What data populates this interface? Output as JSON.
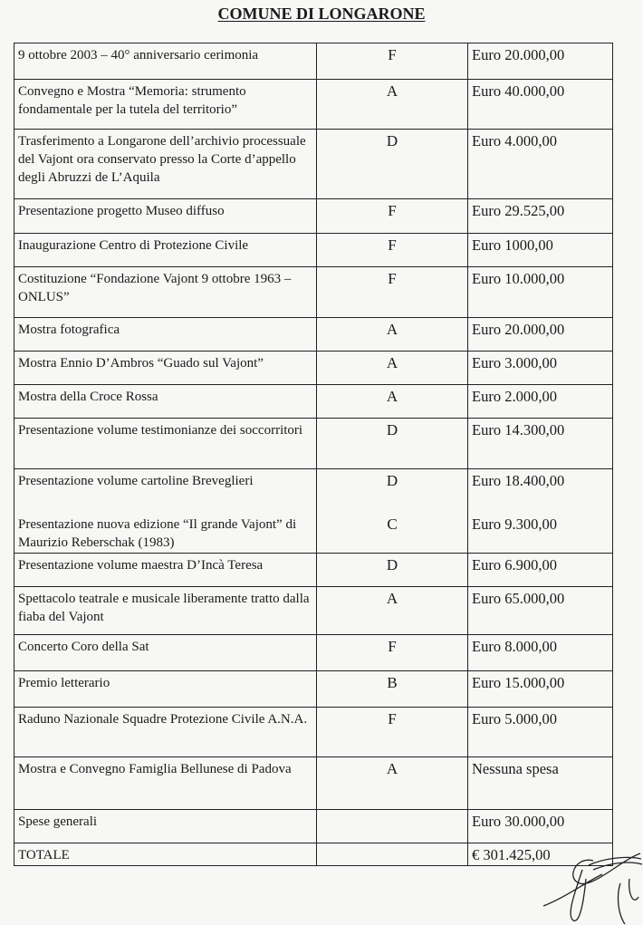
{
  "document": {
    "title": "COMUNE DI LONGARONE",
    "rows": [
      {
        "event": "9 ottobre 2003 – 40° anniversario cerimonia",
        "category": "F",
        "cost": "Euro 20.000,00"
      },
      {
        "event": "Convegno e Mostra “Memoria: strumento fondamentale per la tutela del territorio”",
        "category": "A",
        "cost": "Euro 40.000,00"
      },
      {
        "event": "Trasferimento a Longarone dell’archivio processuale del Vajont ora conservato presso la Corte d’appello degli Abruzzi de L’Aquila",
        "category": "D",
        "cost": "Euro 4.000,00"
      },
      {
        "event": "Presentazione progetto Museo diffuso",
        "category": "F",
        "cost": "Euro 29.525,00"
      },
      {
        "event": "Inaugurazione Centro di Protezione Civile",
        "category": "F",
        "cost": "Euro 1000,00"
      },
      {
        "event": "Costituzione “Fondazione Vajont 9 ottobre 1963 – ONLUS”",
        "category": "F",
        "cost": "Euro 10.000,00"
      },
      {
        "event": "Mostra fotografica",
        "category": "A",
        "cost": "Euro 20.000,00"
      },
      {
        "event": "Mostra Ennio D’Ambros “Guado sul Vajont”",
        "category": "A",
        "cost": "Euro 3.000,00"
      },
      {
        "event": "Mostra della Croce Rossa",
        "category": "A",
        "cost": "Euro 2.000,00"
      },
      {
        "event": "Presentazione volume testimonianze dei soccorritori",
        "category": "D",
        "cost": "Euro 14.300,00"
      },
      {
        "event": "Presentazione volume cartoline Breveglieri",
        "category": "D",
        "cost": "Euro 18.400,00"
      },
      {
        "event": "Presentazione nuova edizione “Il grande Vajont” di Maurizio Reberschak (1983)",
        "category": "C",
        "cost": "Euro 9.300,00"
      },
      {
        "event": "Presentazione volume maestra D’Incà Teresa",
        "category": "D",
        "cost": "Euro 6.900,00"
      },
      {
        "event": "Spettacolo teatrale e musicale liberamente tratto dalla fiaba del Vajont",
        "category": "A",
        "cost": "Euro 65.000,00"
      },
      {
        "event": "Concerto Coro della Sat",
        "category": "F",
        "cost": "Euro 8.000,00"
      },
      {
        "event": "Premio letterario",
        "category": "B",
        "cost": "Euro 15.000,00"
      },
      {
        "event": "Raduno Nazionale Squadre Protezione Civile A.N.A.",
        "category": "F",
        "cost": "Euro 5.000,00"
      },
      {
        "event": "Mostra e Convegno Famiglia Bellunese di Padova",
        "category": "A",
        "cost": "Nessuna spesa"
      },
      {
        "event": "Spese generali",
        "category": "",
        "cost": "Euro 30.000,00"
      },
      {
        "event": "TOTALE",
        "category": "",
        "cost": "€ 301.425,00"
      }
    ]
  }
}
